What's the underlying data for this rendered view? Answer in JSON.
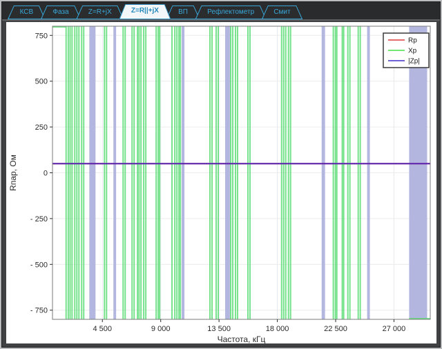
{
  "tabs": [
    {
      "id": "ksv",
      "label": "КСВ",
      "active": false
    },
    {
      "id": "faza",
      "label": "Фаза",
      "active": false
    },
    {
      "id": "z-series",
      "label": "Z=R+jX",
      "active": false
    },
    {
      "id": "z-parallel",
      "label": "Z=R||+jX",
      "active": true
    },
    {
      "id": "vp",
      "label": "ВП",
      "active": false
    },
    {
      "id": "reflektometr",
      "label": "Рефлектометр",
      "active": false
    },
    {
      "id": "smit",
      "label": "Смит",
      "active": false
    }
  ],
  "chart_data": {
    "type": "line",
    "xlabel": "Частота, кГц",
    "ylabel": "Rпар, Ом",
    "xlim": [
      650,
      29800
    ],
    "ylim": [
      -800,
      800
    ],
    "x_ticks": [
      {
        "v": 4500,
        "label": "4 500"
      },
      {
        "v": 9000,
        "label": "9 000"
      },
      {
        "v": 13500,
        "label": "13 500"
      },
      {
        "v": 18000,
        "label": "18 000"
      },
      {
        "v": 22500,
        "label": "22 500"
      },
      {
        "v": 27000,
        "label": "27 000"
      }
    ],
    "y_ticks": [
      {
        "v": 750,
        "label": "750"
      },
      {
        "v": 500,
        "label": "500"
      },
      {
        "v": 250,
        "label": "250"
      },
      {
        "v": 0,
        "label": "0"
      },
      {
        "v": -250,
        "label": "- 250"
      },
      {
        "v": -500,
        "label": "- 500"
      },
      {
        "v": -750,
        "label": "- 750"
      }
    ],
    "grid": true,
    "legend_position": "top-right",
    "legend": [
      {
        "name": "Rp",
        "color": "#e66c6c"
      },
      {
        "name": "Xp",
        "color": "#74e674"
      },
      {
        "name": "|Zp|",
        "color": "#6b64d8"
      }
    ],
    "series": [
      {
        "name": "Rp",
        "type": "hline",
        "value": 50,
        "color": "#d94f4f"
      },
      {
        "name": "Xp",
        "type": "resonance-spikes",
        "color": "#5fdd78",
        "spikes_khz": [
          1700,
          1870,
          2010,
          2160,
          2370,
          2530,
          2690,
          2900,
          3060,
          4660,
          4820,
          6100,
          6260,
          6790,
          6950,
          7210,
          7330,
          7480,
          7690,
          7850,
          8650,
          8810,
          8920,
          9870,
          10090,
          10250,
          10410,
          10520,
          12800,
          12960,
          13280,
          13440,
          14400,
          14560,
          14770,
          14930,
          15730,
          15890,
          18330,
          18490,
          18650,
          18860,
          19020,
          22320,
          22480,
          22590,
          23010,
          23120,
          23440,
          23600,
          24240,
          24400
        ],
        "top_edge_segment_khz": [
          650,
          1700
        ],
        "bottom_edge_segment_khz": [
          28170,
          29800
        ]
      },
      {
        "name": "|Zp|",
        "type": "hline-with-bands",
        "value": 50,
        "color": "#5a28b4",
        "band_color": "#b3b6df",
        "bands_khz": [
          [
            3490,
            3970
          ],
          [
            5350,
            5560
          ],
          [
            10620,
            10830
          ],
          [
            13970,
            14340
          ],
          [
            21420,
            21680
          ],
          [
            24930,
            25140
          ],
          [
            28170,
            29560
          ]
        ]
      }
    ]
  }
}
